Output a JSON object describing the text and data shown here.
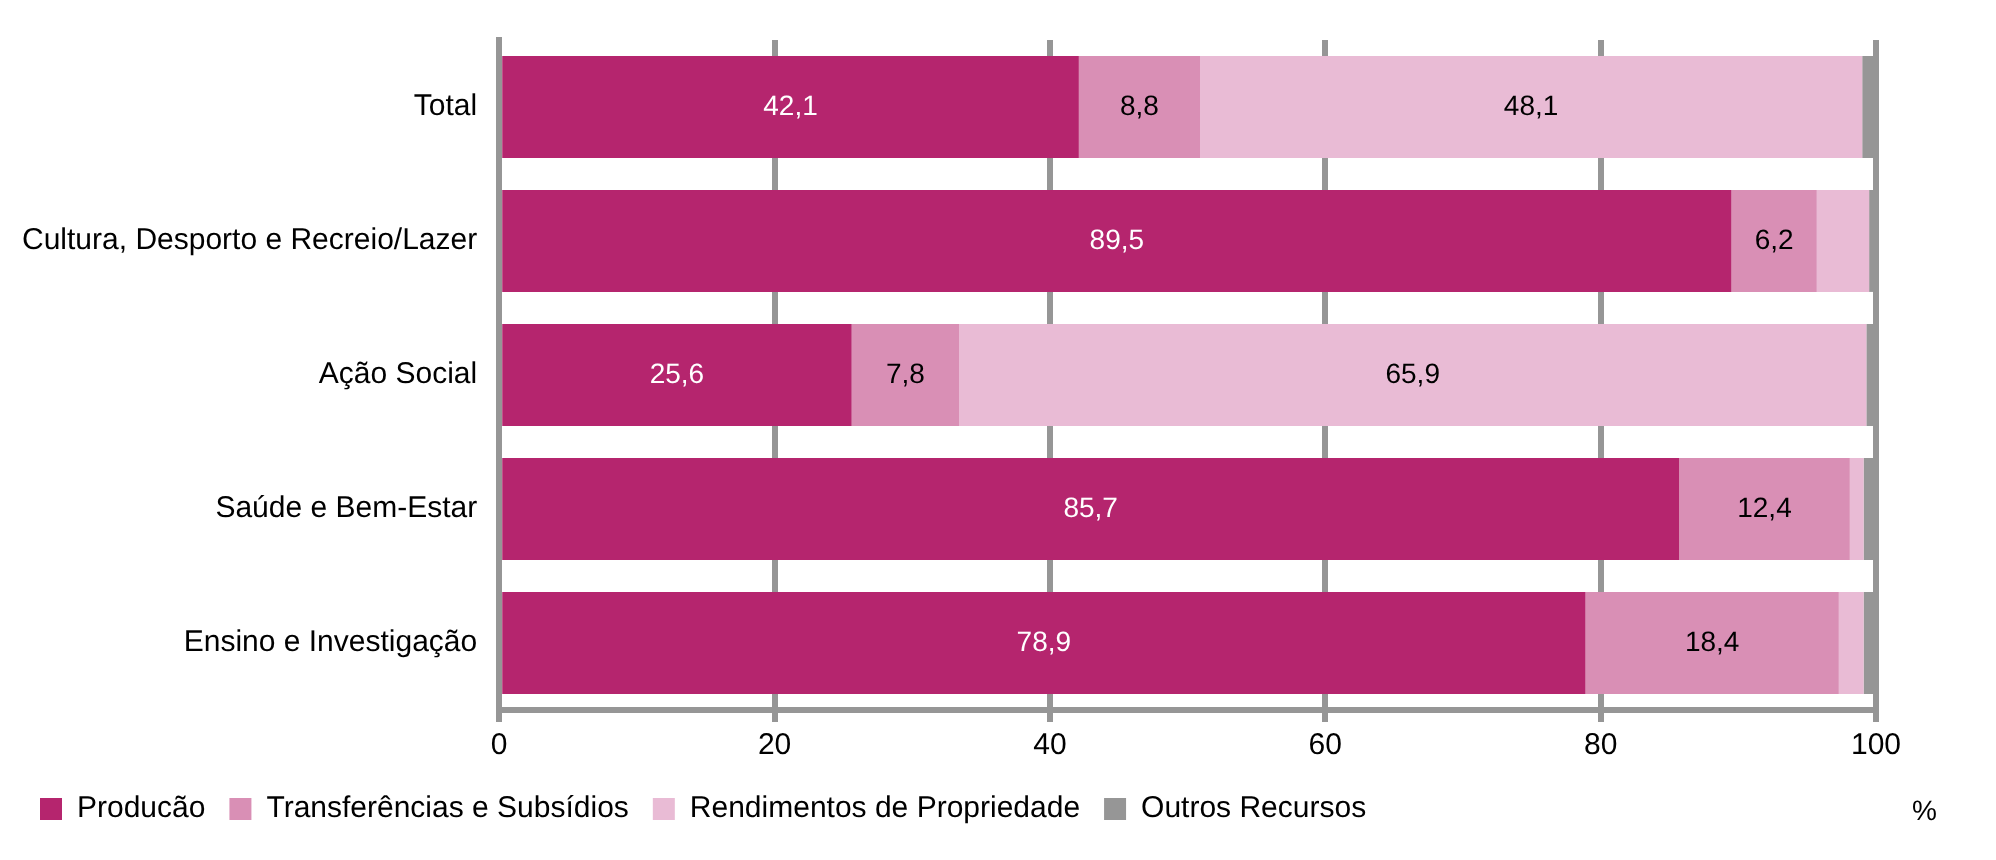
{
  "chart_data": {
    "type": "bar",
    "orientation": "horizontal",
    "stacked": true,
    "xlabel": "%",
    "categories": [
      "Total",
      "Cultura, Desporto e Recreio/Lazer",
      "Ação Social",
      "Saúde e Bem-Estar",
      "Ensino e Investigação"
    ],
    "series": [
      {
        "name": "Producão",
        "color": "#b5256e",
        "values": [
          42.1,
          89.5,
          25.6,
          85.7,
          78.9
        ],
        "value_labels": [
          "42,1",
          "89,5",
          "25,6",
          "85,7",
          "78,9"
        ]
      },
      {
        "name": "Transferências e Subsídios",
        "color": "#d98fb5",
        "values": [
          8.8,
          6.2,
          7.8,
          12.4,
          18.4
        ],
        "value_labels": [
          "8,8",
          "6,2",
          "7,8",
          "12,4",
          "18,4"
        ]
      },
      {
        "name": "Rendimentos de Propriedade",
        "color": "#e9bbd5",
        "values": [
          48.1,
          3.8,
          65.9,
          1.0,
          1.8
        ],
        "value_labels": [
          "48,1",
          null,
          "65,9",
          null,
          null
        ]
      },
      {
        "name": "Outros Recursos",
        "color": "#969696",
        "values": [
          1.0,
          0.5,
          0.7,
          0.9,
          0.9
        ]
      }
    ],
    "xlim": [
      0,
      100
    ],
    "xticks": [
      0,
      20,
      40,
      60,
      80,
      100
    ],
    "grid": "x",
    "legend": "bottom"
  }
}
